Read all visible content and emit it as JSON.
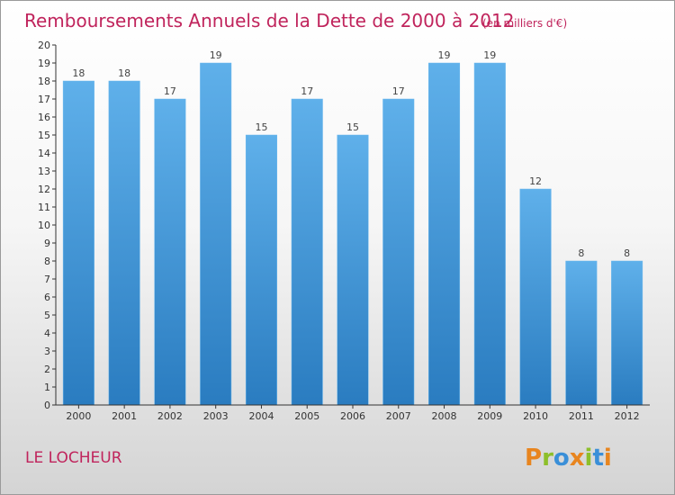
{
  "chart_data": {
    "type": "bar",
    "title": "Remboursements Annuels de la Dette de 2000 à 2012",
    "subtitle": "(en milliers d'€)",
    "xlabel": "",
    "ylabel": "",
    "categories": [
      "2000",
      "2001",
      "2002",
      "2003",
      "2004",
      "2005",
      "2006",
      "2007",
      "2008",
      "2009",
      "2010",
      "2011",
      "2012"
    ],
    "values": [
      18,
      18,
      17,
      19,
      15,
      17,
      15,
      17,
      19,
      19,
      12,
      8,
      8
    ],
    "ylim": [
      0,
      20
    ],
    "yticks": [
      0,
      1,
      2,
      3,
      4,
      5,
      6,
      7,
      8,
      9,
      10,
      11,
      12,
      13,
      14,
      15,
      16,
      17,
      18,
      19,
      20
    ],
    "grid": false,
    "bar_color": "#5aaae6",
    "bar_color_dark": "#2a7cc0"
  },
  "commune_name": "LE LOCHEUR",
  "logo": {
    "letters": [
      "P",
      "r",
      "o",
      "x",
      "i",
      "t",
      "i"
    ],
    "colors": [
      "#e8851f",
      "#8dbf2a",
      "#3a8fd8",
      "#e8851f",
      "#8dbf2a",
      "#3a8fd8",
      "#e8851f"
    ]
  }
}
